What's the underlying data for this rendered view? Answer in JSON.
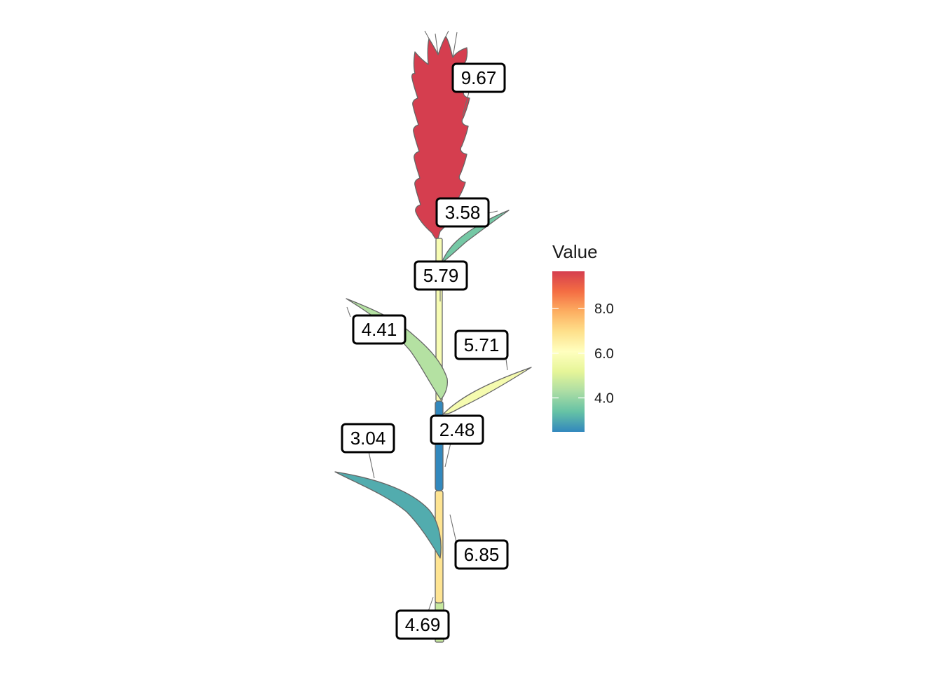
{
  "legend": {
    "title": "Value",
    "min": 2.48,
    "max": 9.67,
    "ticks": [
      {
        "value": 8.0,
        "label": "8.0"
      },
      {
        "value": 6.0,
        "label": "6.0"
      },
      {
        "value": 4.0,
        "label": "4.0"
      }
    ],
    "palette": [
      "#3288bd",
      "#66c2a5",
      "#abdda4",
      "#e6f598",
      "#ffffbf",
      "#fee08b",
      "#fdae61",
      "#f46d43",
      "#d53e4f"
    ]
  },
  "parts": [
    {
      "id": "spike",
      "label": "9.67",
      "value": 9.67
    },
    {
      "id": "flag-leaf",
      "label": "3.58",
      "value": 3.58
    },
    {
      "id": "peduncle",
      "label": "5.79",
      "value": 5.79
    },
    {
      "id": "leaf-2",
      "label": "4.41",
      "value": 4.41
    },
    {
      "id": "leaf-3",
      "label": "5.71",
      "value": 5.71
    },
    {
      "id": "internode-2",
      "label": "2.48",
      "value": 2.48
    },
    {
      "id": "leaf-4",
      "label": "3.04",
      "value": 3.04
    },
    {
      "id": "internode-3",
      "label": "6.85",
      "value": 6.85
    },
    {
      "id": "internode-4",
      "label": "4.69",
      "value": 4.69
    }
  ],
  "outline_color": "#666666"
}
